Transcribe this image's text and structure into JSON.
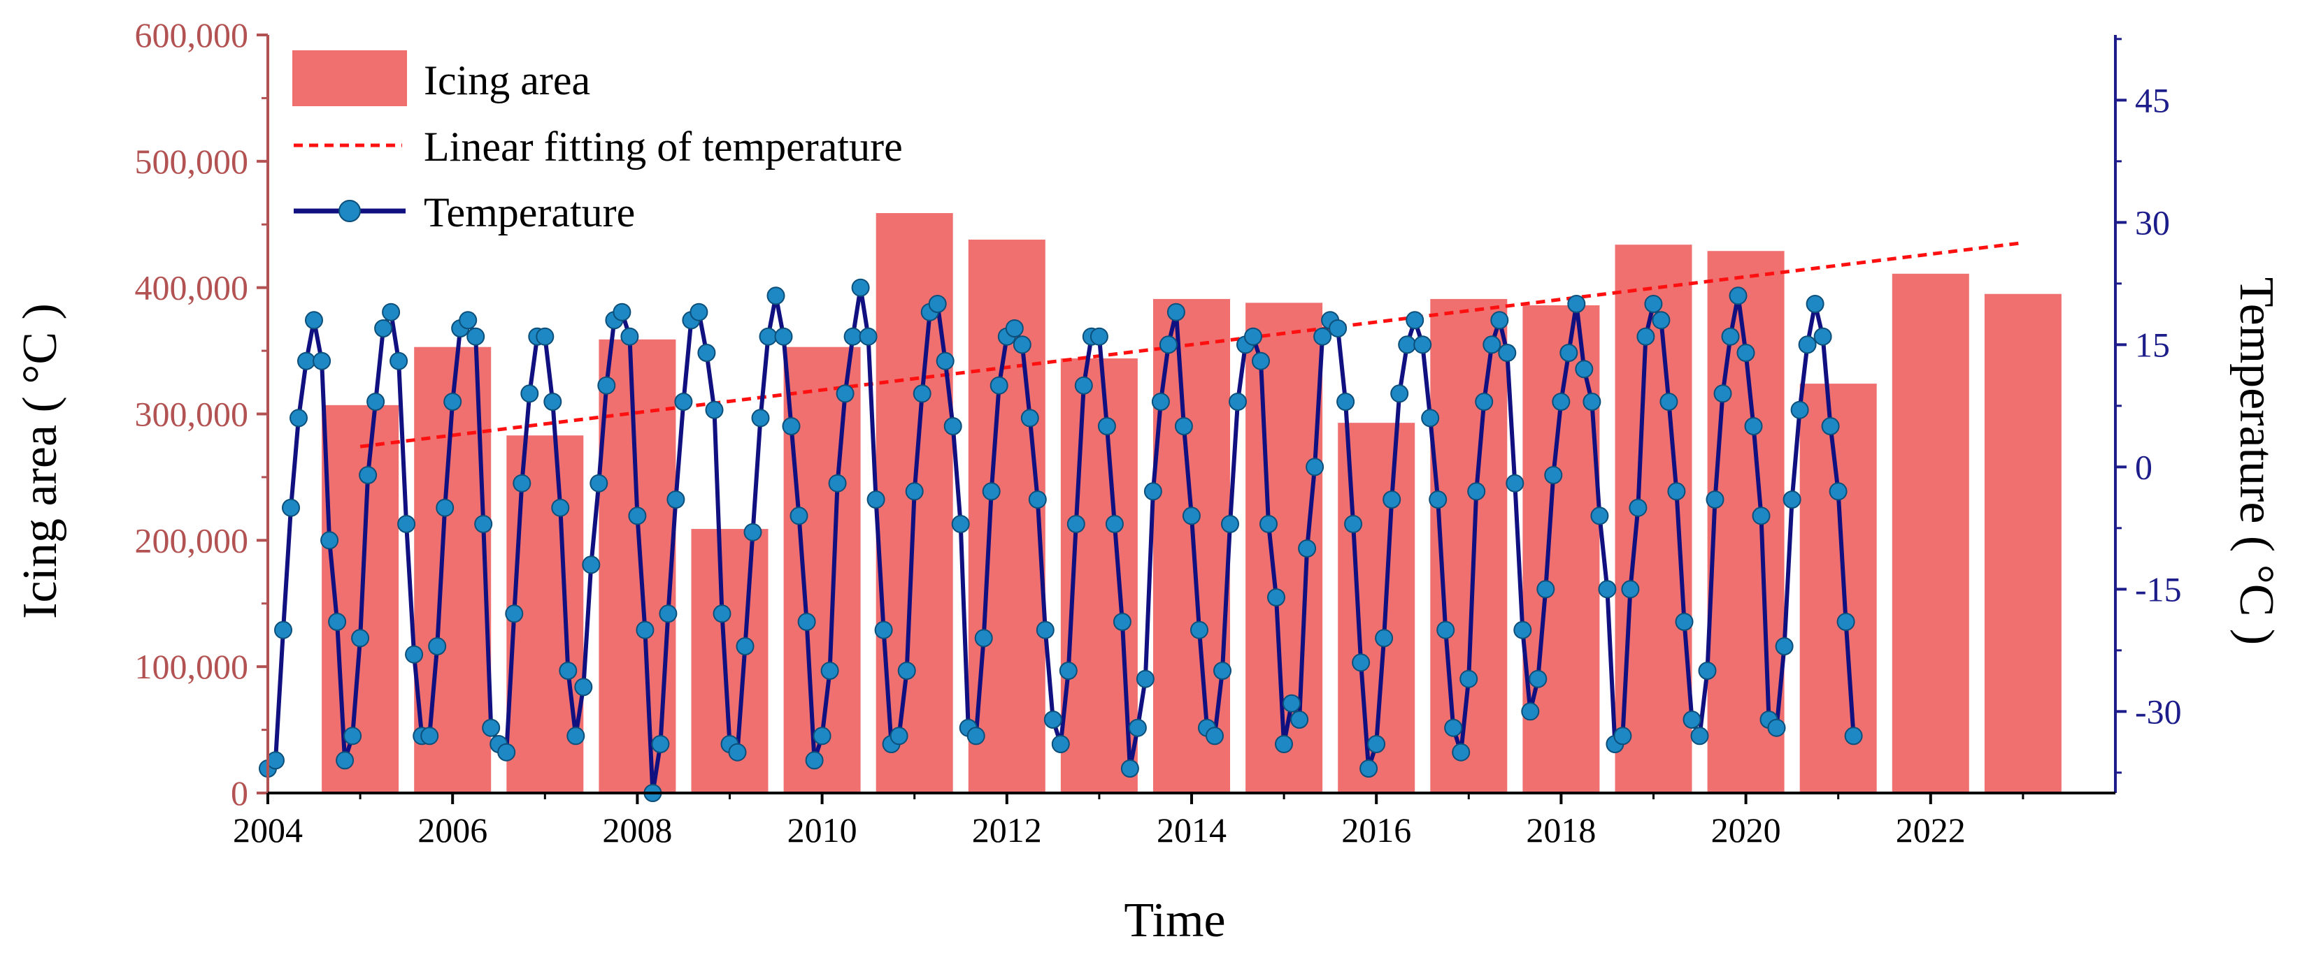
{
  "chart_data": {
    "type": "bar+line",
    "title": "",
    "xlabel": "Time",
    "ylabel_left": "Icing area ( °C )",
    "ylabel_right": "Temperature ( °C )",
    "x_range": [
      2004,
      2024
    ],
    "x_ticks": [
      "2004",
      "2006",
      "2008",
      "2010",
      "2012",
      "2014",
      "2016",
      "2018",
      "2020",
      "2022"
    ],
    "left_axis": {
      "range": [
        0,
        600000
      ],
      "ticks": [
        "0",
        "100,000",
        "200,000",
        "300,000",
        "400,000",
        "500,000",
        "600,000"
      ],
      "color": "#b35252"
    },
    "right_axis": {
      "range": [
        -40,
        53
      ],
      "ticks": [
        "-30",
        "-15",
        "0",
        "15",
        "30",
        "45"
      ],
      "color": "#1c1c8a"
    },
    "legend": {
      "position": "top-left",
      "entries": [
        "Icing area",
        "Linear fitting of temperature",
        "Temperature"
      ]
    },
    "series": [
      {
        "name": "Icing area",
        "type": "bar",
        "color": "#f07070",
        "years": [
          2005,
          2006,
          2007,
          2008,
          2009,
          2010,
          2011,
          2012,
          2013,
          2014,
          2015,
          2016,
          2017,
          2018,
          2019,
          2020,
          2021,
          2022,
          2023
        ],
        "values": [
          307000,
          353000,
          283000,
          359000,
          209000,
          353000,
          459000,
          438000,
          344000,
          391000,
          388000,
          293000,
          391000,
          386000,
          434000,
          429000,
          324000,
          411000,
          395000
        ]
      },
      {
        "name": "Linear fitting of temperature",
        "type": "line",
        "style": "dashed",
        "color": "#ff1010",
        "x": [
          2005.0,
          2023.0
        ],
        "y": [
          2.5,
          27.5
        ]
      },
      {
        "name": "Temperature",
        "type": "line",
        "color": "#101080",
        "marker_color": "#1e88c4",
        "start": 2004.0,
        "step": 0.08333,
        "values": [
          -37,
          -36,
          -20,
          -5,
          6,
          13,
          18,
          13,
          -9,
          -19,
          -36,
          -33,
          -21,
          -1,
          8,
          17,
          19,
          13,
          -7,
          -23,
          -33,
          -33,
          -22,
          -5,
          8,
          17,
          18,
          16,
          -7,
          -32,
          -34,
          -35,
          -18,
          -2,
          9,
          16,
          16,
          8,
          -5,
          -25,
          -33,
          -27,
          -12,
          -2,
          10,
          18,
          19,
          16,
          -6,
          -20,
          -40,
          -34,
          -18,
          -4,
          8,
          18,
          19,
          14,
          7,
          -18,
          -34,
          -35,
          -22,
          -8,
          6,
          16,
          21,
          16,
          5,
          -6,
          -19,
          -36,
          -33,
          -25,
          -2,
          9,
          16,
          22,
          16,
          -4,
          -20,
          -34,
          -33,
          -25,
          -3,
          9,
          19,
          20,
          13,
          5,
          -7,
          -32,
          -33,
          -21,
          -3,
          10,
          16,
          17,
          15,
          6,
          -4,
          -20,
          -31,
          -34,
          -25,
          -7,
          10,
          16,
          16,
          5,
          -7,
          -19,
          -37,
          -32,
          -26,
          -3,
          8,
          15,
          19,
          5,
          -6,
          -20,
          -32,
          -33,
          -25,
          -7,
          8,
          15,
          16,
          13,
          -7,
          -16,
          -34,
          -29,
          -31,
          -10,
          0,
          16,
          18,
          17,
          8,
          -7,
          -24,
          -37,
          -34,
          -21,
          -4,
          9,
          15,
          18,
          15,
          6,
          -4,
          -20,
          -32,
          -35,
          -26,
          -3,
          8,
          15,
          18,
          14,
          -2,
          -20,
          -30,
          -26,
          -15,
          -1,
          8,
          14,
          20,
          12,
          8,
          -6,
          -15,
          -34,
          -33,
          -15,
          -5,
          16,
          20,
          18,
          8,
          -3,
          -19,
          -31,
          -33,
          -25,
          -4,
          9,
          16,
          21,
          14,
          5,
          -6,
          -31,
          -32,
          -22,
          -4,
          7,
          15,
          20,
          16,
          5,
          -3,
          -19,
          -33
        ]
      }
    ]
  }
}
